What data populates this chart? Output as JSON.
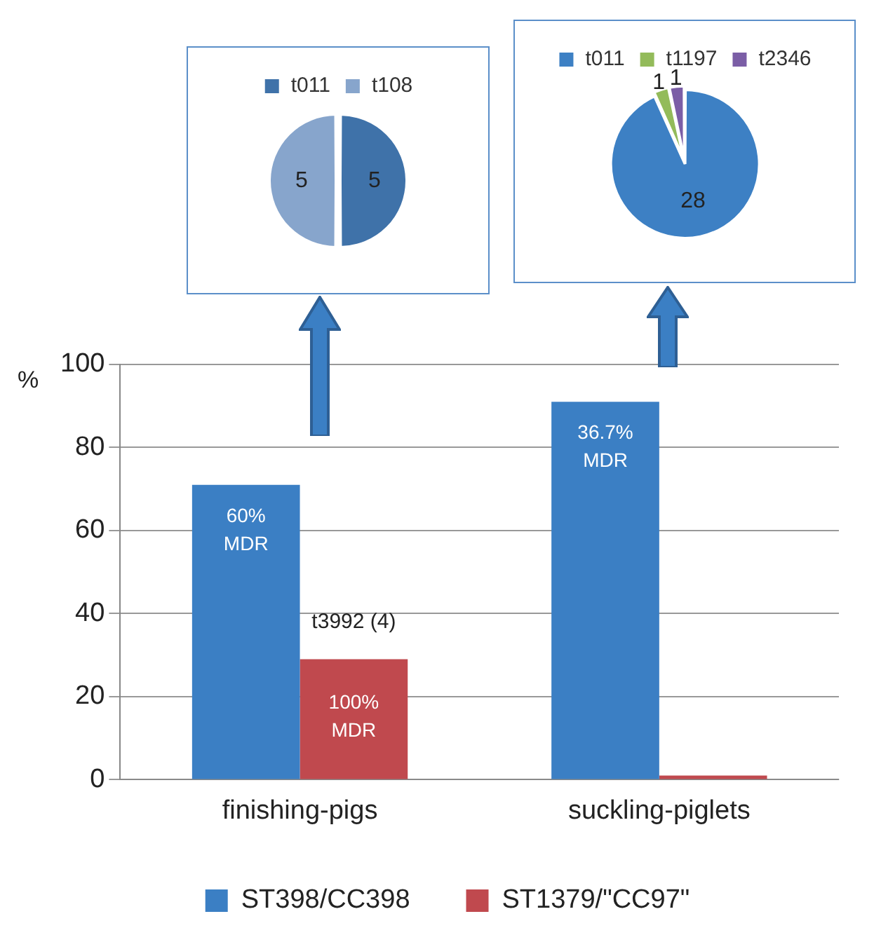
{
  "chart_data": [
    {
      "type": "pie",
      "categories": [
        "t011",
        "t108"
      ],
      "values": [
        5,
        5
      ],
      "colors": [
        "#3f72a9",
        "#87a5cc"
      ],
      "data_labels": true,
      "legend": "top"
    },
    {
      "type": "pie",
      "categories": [
        "t011",
        "t1197",
        "t2346"
      ],
      "values": [
        28,
        1,
        1
      ],
      "colors": [
        "#3d80c4",
        "#93bb5a",
        "#7b5ea6"
      ],
      "data_labels": true,
      "legend": "top"
    },
    {
      "type": "bar",
      "ylabel": "%",
      "categories": [
        "finishing-pigs",
        "suckling-piglets"
      ],
      "series": [
        {
          "name": "ST398/CC398",
          "color": "#3b7fc4",
          "values": [
            71,
            91
          ]
        },
        {
          "name": "ST1379/\"CC97\"",
          "color": "#c0494e",
          "values": [
            29,
            0
          ]
        }
      ],
      "ylim": [
        0,
        100
      ],
      "yticks": [
        0,
        20,
        40,
        60,
        80,
        100
      ],
      "grid": "y",
      "legend": "bottom",
      "annotations": [
        {
          "text": "60%\nMDR",
          "x": "finishing-pigs",
          "y": 60
        },
        {
          "text": "100%\nMDR",
          "x": "finishing-pigs",
          "y": 15
        },
        {
          "text": "36.7%\nMDR",
          "x": "suckling-piglets",
          "y": 80
        },
        {
          "text": "t3992 (4)",
          "x": "finishing-pigs",
          "y": 38
        }
      ]
    }
  ]
}
